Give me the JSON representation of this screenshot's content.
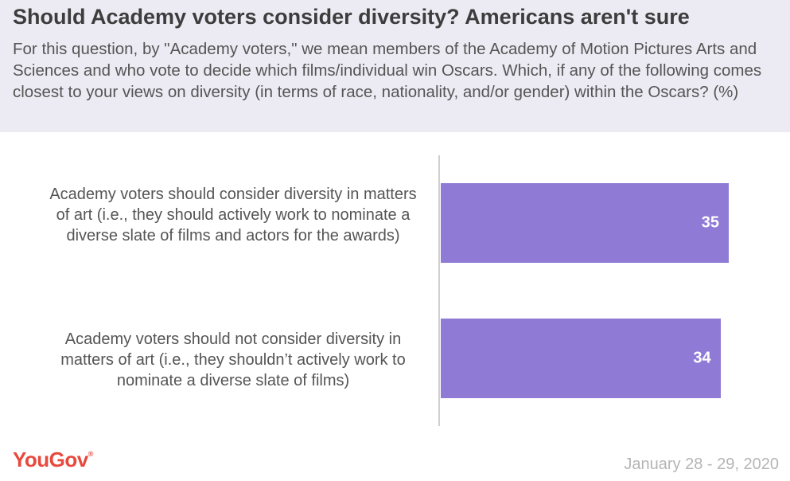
{
  "header": {
    "title": "Should Academy voters consider diversity? Americans aren't sure",
    "subtitle": "For this question, by \"Academy voters,\" we mean members of the Academy of Motion Pictures Arts and Sciences and who vote to decide which films/individual win Oscars. Which, if any of the following comes closest to your views on diversity (in terms of race, nationality, and/or gender) within the Oscars? (%)"
  },
  "chart_data": {
    "type": "bar",
    "orientation": "horizontal",
    "categories": [
      "Academy voters should consider diversity in matters of art (i.e., they should actively work to nominate a diverse slate of films and actors for the awards)",
      "Academy voters should not consider diversity in matters of art (i.e., they shouldn’t actively work to nominate a diverse slate of films)"
    ],
    "values": [
      35,
      34
    ],
    "data_labels": [
      "35",
      "34"
    ],
    "xlim": [
      0,
      35
    ],
    "bar_color": "#8f7ad6",
    "grid": false
  },
  "footer": {
    "logo": "YouGov",
    "date": "January 28 - 29, 2020"
  },
  "colors": {
    "header_bg": "#ecebf3",
    "logo": "#e8493d"
  }
}
